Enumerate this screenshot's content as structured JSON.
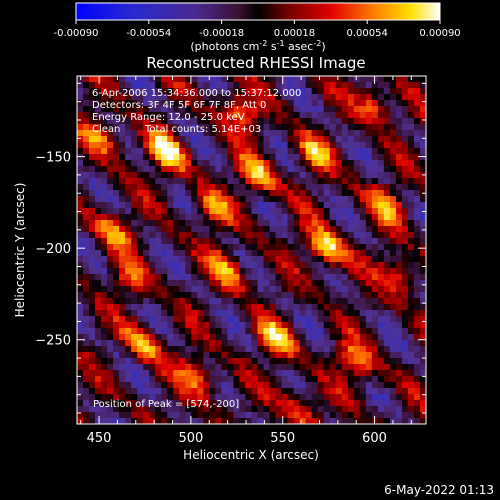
{
  "chart_data": {
    "type": "heatmap",
    "title": "Reconstructed RHESSI Image",
    "xlabel": "Heliocentric X (arcsec)",
    "ylabel": "Heliocentric Y (arcsec)",
    "xlim": [
      438,
      628
    ],
    "ylim": [
      -296,
      -106
    ],
    "xticks": [
      450,
      500,
      550,
      600
    ],
    "yticks": [
      -150,
      -200,
      -250
    ],
    "colorbar": {
      "ticks": [
        "-0.00090",
        "-0.00054",
        "-0.00018",
        "0.00018",
        "0.00054",
        "0.00090"
      ],
      "range": [
        -0.0009,
        0.0009
      ],
      "label_main": "(photons cm",
      "label_exp1": "-2",
      "label_mid": " s",
      "label_exp2": "-1",
      "label_end": " asec",
      "label_exp3": "-2",
      "label_close": ")"
    },
    "peak": [
      574,
      -200
    ],
    "sources": [
      {
        "x": 487,
        "y": -148,
        "amp": 1.0
      },
      {
        "x": 574,
        "y": -200,
        "amp": 1.0
      },
      {
        "x": 527,
        "y": -126,
        "amp": 0.75
      },
      {
        "x": 567,
        "y": -148,
        "amp": 0.65
      },
      {
        "x": 536,
        "y": -160,
        "amp": 0.85
      },
      {
        "x": 458,
        "y": -190,
        "amp": 0.7
      },
      {
        "x": 520,
        "y": -212,
        "amp": 0.75
      },
      {
        "x": 606,
        "y": -176,
        "amp": 0.7
      },
      {
        "x": 474,
        "y": -252,
        "amp": 0.75
      },
      {
        "x": 546,
        "y": -250,
        "amp": 0.8
      },
      {
        "x": 590,
        "y": -262,
        "amp": 0.75
      },
      {
        "x": 503,
        "y": -270,
        "amp": 0.7
      },
      {
        "x": 615,
        "y": -216,
        "amp": 0.65
      },
      {
        "x": 452,
        "y": -140,
        "amp": 0.7
      },
      {
        "x": 600,
        "y": -122,
        "amp": 0.7
      },
      {
        "x": 512,
        "y": -178,
        "amp": 0.6
      },
      {
        "x": 560,
        "y": -288,
        "amp": 0.6
      },
      {
        "x": 468,
        "y": -218,
        "amp": 0.55
      }
    ]
  },
  "annotations": {
    "time_range": "6-Apr-2006 15:34:36.000 to 15:37:12.000",
    "detectors": "Detectors: 3F 4F 5F 6F 7F 8F, Att 0",
    "energy": "Energy Range: 12.0 - 25.0 keV",
    "algorithm": "Clean",
    "total_counts": "Total counts: 5.14E+03",
    "peak_position": "Position of Peak = [574,-200]"
  },
  "timestamp": "6-May-2022 01:13"
}
